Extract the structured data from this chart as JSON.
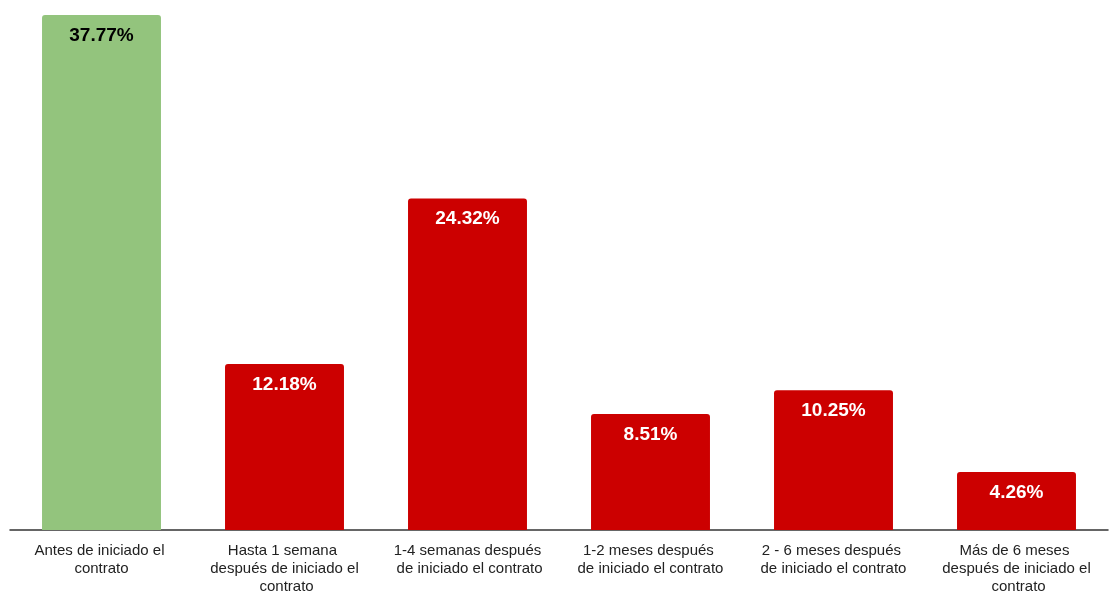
{
  "chart_data": {
    "type": "bar",
    "categories": [
      "Antes de iniciado el contrato",
      "Hasta 1 semana después de iniciado el contrato",
      "1-4 semanas después de iniciado el contrato",
      "1-2 meses después de iniciado el contrato",
      "2 - 6 meses después de iniciado el contrato",
      "Más de 6 meses después de iniciado el contrato"
    ],
    "values": [
      37.77,
      12.18,
      24.32,
      8.51,
      10.25,
      4.26
    ],
    "value_labels": [
      "37.77%",
      "12.18%",
      "24.32%",
      "8.51%",
      "10.25%",
      "4.26%"
    ],
    "colors": [
      "#93c47d",
      "#cc0000",
      "#cc0000",
      "#cc0000",
      "#cc0000",
      "#cc0000"
    ]
  }
}
